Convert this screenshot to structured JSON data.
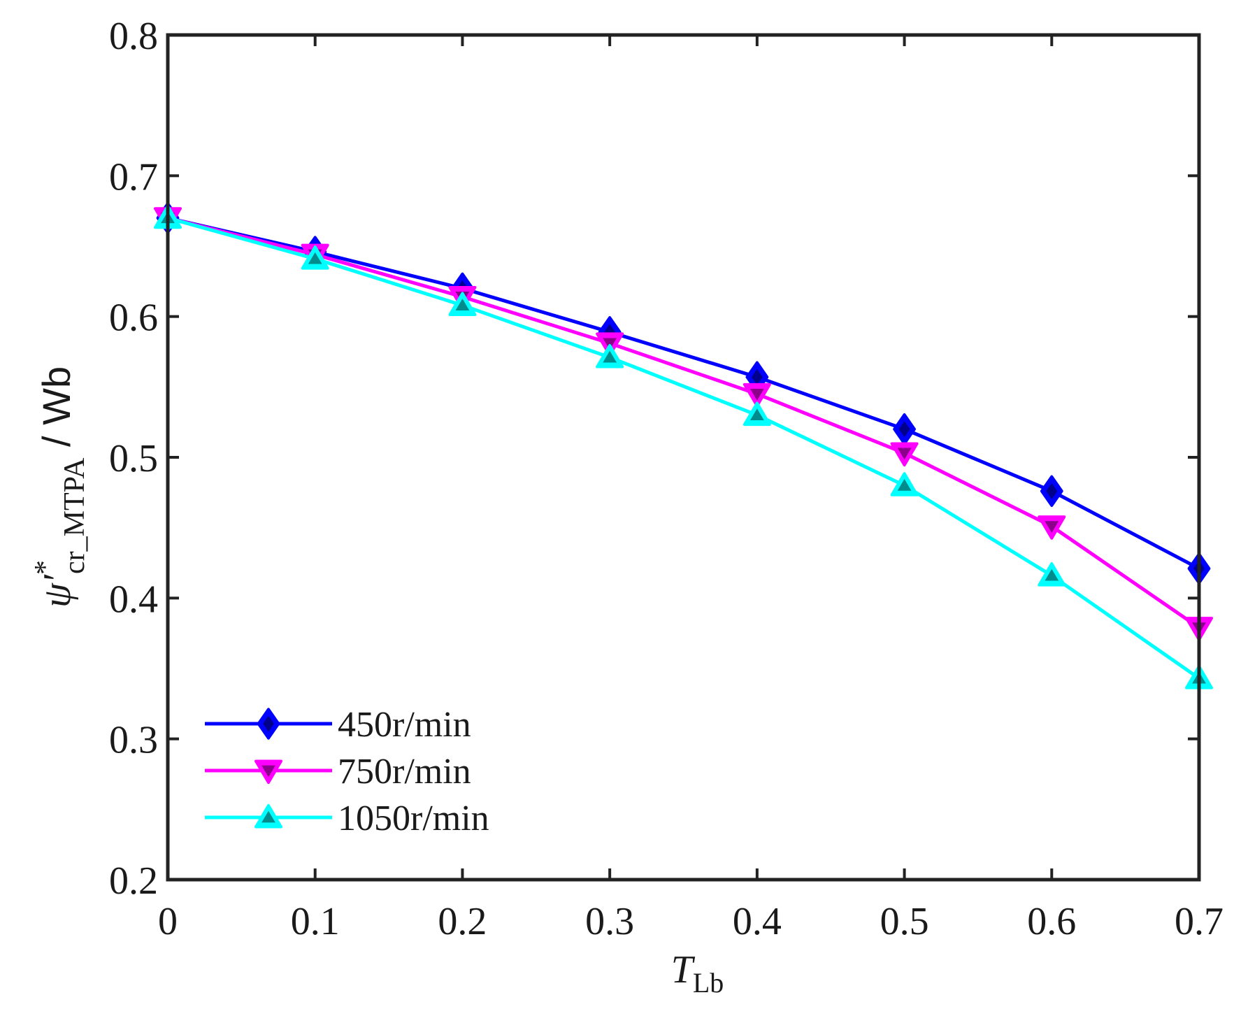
{
  "chart_data": {
    "type": "line",
    "x": [
      0,
      0.1,
      0.2,
      0.3,
      0.4,
      0.5,
      0.6,
      0.7
    ],
    "xlim": [
      0,
      0.7
    ],
    "ylim": [
      0.2,
      0.8
    ],
    "xticks": [
      "0",
      "0.1",
      "0.2",
      "0.3",
      "0.4",
      "0.5",
      "0.6",
      "0.7"
    ],
    "yticks": [
      "0.2",
      "0.3",
      "0.4",
      "0.5",
      "0.6",
      "0.7",
      "0.8"
    ],
    "xlabel": {
      "main": "T",
      "sub": "Lb"
    },
    "ylabel": {
      "main": "ψ′",
      "sup": "*",
      "sub": "cr_MTPA",
      "unit": " / Wb"
    },
    "grid": false,
    "legend_position": "bottom-left",
    "series": [
      {
        "name": "450r/min",
        "color": "#0000ff",
        "marker": "diamond",
        "values": [
          0.67,
          0.646,
          0.62,
          0.589,
          0.557,
          0.52,
          0.476,
          0.421
        ]
      },
      {
        "name": "750r/min",
        "color": "#ff00ff",
        "marker": "triangle-down",
        "values": [
          0.67,
          0.644,
          0.614,
          0.581,
          0.545,
          0.503,
          0.451,
          0.379
        ]
      },
      {
        "name": "1050r/min",
        "color": "#00ffff",
        "marker": "triangle-up",
        "values": [
          0.67,
          0.641,
          0.608,
          0.571,
          0.53,
          0.48,
          0.416,
          0.343
        ]
      }
    ]
  }
}
